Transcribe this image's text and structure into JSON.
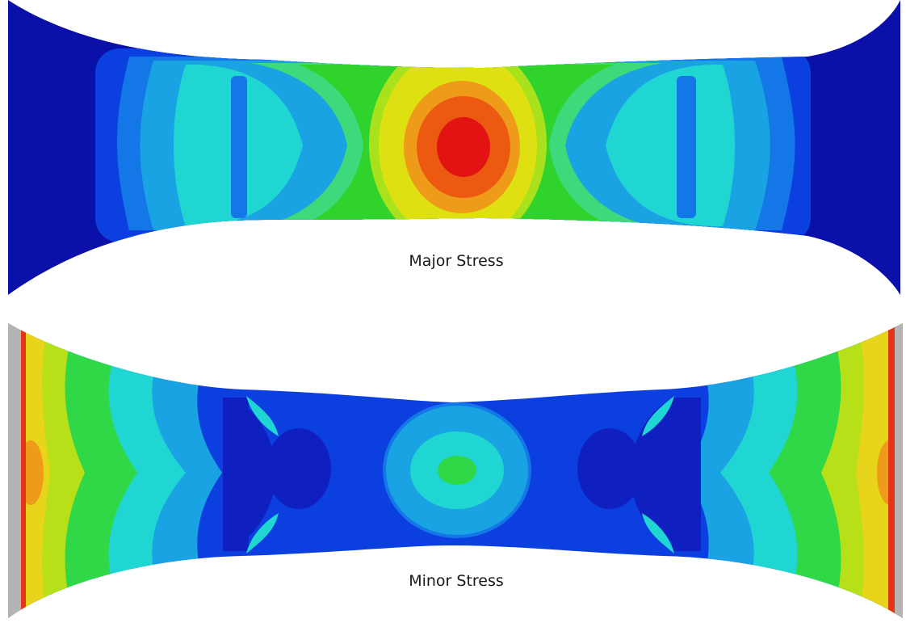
{
  "panels": [
    {
      "caption": "Major Stress",
      "palette": {
        "blue_dark": "#0a10a8",
        "blue": "#0b3fe0",
        "blue_mid": "#1477e8",
        "sky": "#19a3e3",
        "cyan": "#20d6d3",
        "green_light": "#3dd97a",
        "green": "#2fd32c",
        "yellow_green": "#a9e21c",
        "yellow": "#dfe012",
        "orange": "#ee9b1a",
        "orange_red": "#ec5a12",
        "red": "#e31313"
      }
    },
    {
      "caption": "Minor Stress",
      "palette": {
        "grey": "#b4b4b4",
        "blue_dark": "#1020c0",
        "blue": "#0b3fe0",
        "blue_mid": "#1477e8",
        "sky": "#19a3e3",
        "cyan": "#20d6d3",
        "green": "#30d848",
        "yellow_green": "#b8e018",
        "yellow": "#e8d41a",
        "orange": "#ee9b1a",
        "red": "#e33518"
      }
    }
  ]
}
